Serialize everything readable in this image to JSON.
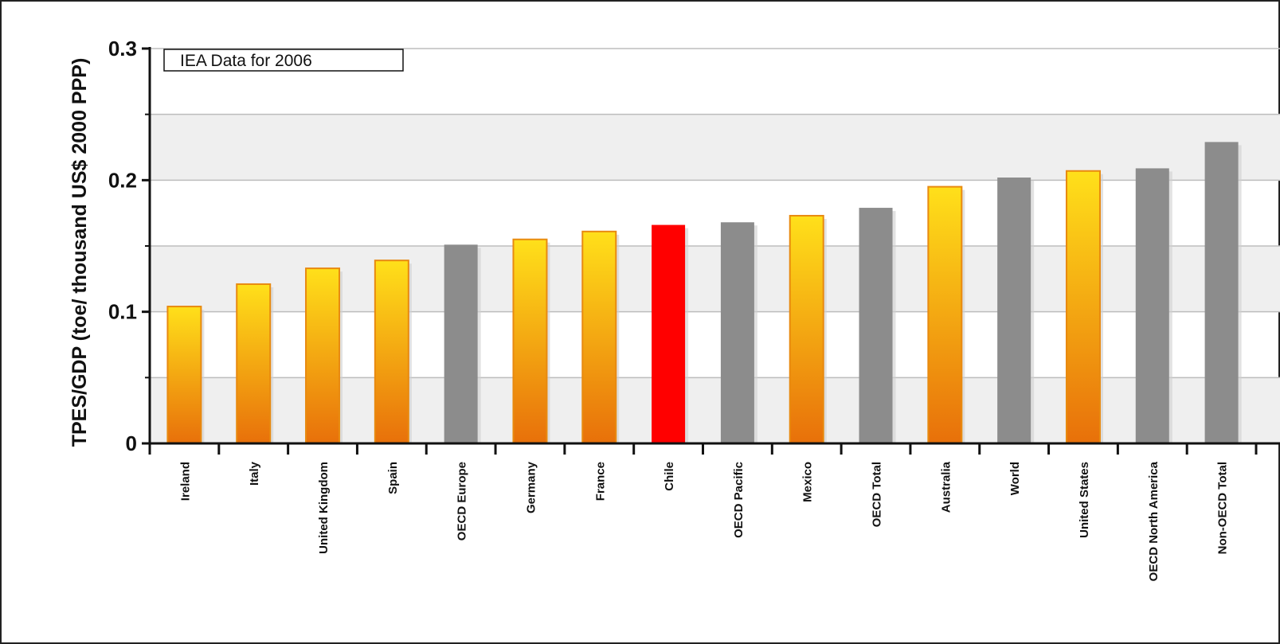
{
  "chart_data": {
    "type": "bar",
    "ylabel": "TPES/GDP (toe/ thousand US$ 2000 PPP)",
    "xlabel": "",
    "annotation": "IEA Data for 2006",
    "ylim": [
      0,
      0.3
    ],
    "yticks": [
      "0",
      "0.1",
      "0.2",
      "0.3"
    ],
    "grid": true,
    "categories": [
      "Ireland",
      "Italy",
      "United Kingdom",
      "Spain",
      "OECD Europe",
      "Germany",
      "France",
      "Chile",
      "OECD Pacific",
      "Mexico",
      "OECD Total",
      "Australia",
      "World",
      "United States",
      "OECD North America",
      "Non-OECD Total"
    ],
    "values": [
      0.104,
      0.121,
      0.133,
      0.139,
      0.151,
      0.155,
      0.161,
      0.166,
      0.168,
      0.173,
      0.179,
      0.195,
      0.202,
      0.207,
      0.209,
      0.229
    ],
    "bar_kinds": [
      "country",
      "country",
      "country",
      "country",
      "aggregate",
      "country",
      "country",
      "highlight",
      "aggregate",
      "country",
      "aggregate",
      "country",
      "aggregate",
      "country",
      "aggregate",
      "aggregate"
    ],
    "colors": {
      "country_top": "#FFE01A",
      "country_bottom": "#E8700A",
      "country_border": "#E88A10",
      "aggregate": "#8C8C8C",
      "highlight": "#FF0000",
      "band": "#EFEFEF",
      "gridline": "#BDBDBD",
      "axis": "#111111"
    }
  }
}
